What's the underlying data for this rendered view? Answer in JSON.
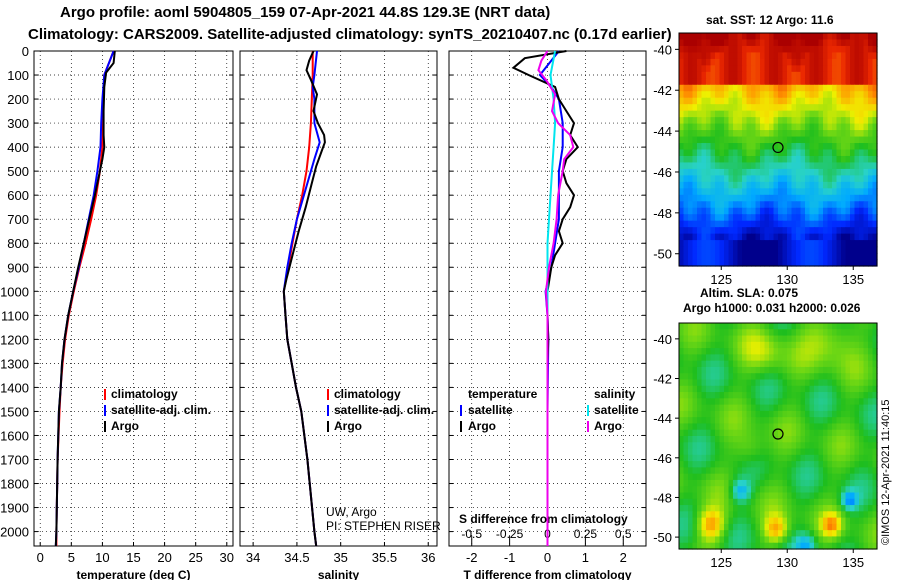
{
  "header": {
    "title_line1": "Argo profile: aoml 5904805_159 07-Apr-2021 44.8S 129.3E (NRT data)",
    "title_line2": "Climatology: CARS2009. Satellite-adjusted climatology: synTS_20210407.nc (0.17d earlier)"
  },
  "colors": {
    "climatology": "#ff0000",
    "satellite": "#0000ff",
    "argo": "#000000",
    "sat_salinity": "#00e5ee",
    "argo_salinity": "#ee00ee"
  },
  "depth_axis": {
    "ticks": [
      "0",
      "100",
      "200",
      "300",
      "400",
      "500",
      "600",
      "700",
      "800",
      "900",
      "1000",
      "1100",
      "1200",
      "1300",
      "1400",
      "1500",
      "1600",
      "1700",
      "1800",
      "1900",
      "2000"
    ],
    "range": [
      0,
      2060
    ]
  },
  "chart_data": [
    {
      "type": "line",
      "name": "temperature",
      "xlabel": "temperature (deg C)",
      "ylabel": "",
      "xlim": [
        -1,
        31
      ],
      "ylim": [
        2060,
        0
      ],
      "xticks": [
        "0",
        "5",
        "10",
        "15",
        "20",
        "25",
        "30"
      ],
      "legend": [
        "climatology",
        "satellite-adj. clim.",
        "Argo"
      ],
      "series": [
        {
          "name": "climatology",
          "color": "#ff0000",
          "depth": [
            0,
            100,
            200,
            300,
            400,
            500,
            600,
            700,
            800,
            900,
            1000,
            1100,
            1200,
            1300,
            1400,
            1500,
            1700,
            2000,
            2060
          ],
          "values": [
            11.8,
            10.3,
            10.2,
            10.1,
            10.0,
            9.6,
            9.0,
            8.2,
            7.3,
            6.3,
            5.4,
            4.6,
            4.0,
            3.6,
            3.3,
            3.1,
            2.8,
            2.6,
            2.6
          ]
        },
        {
          "name": "satellite-adj. clim.",
          "color": "#0000ff",
          "depth": [
            0,
            100,
            200,
            300,
            400,
            500,
            600,
            700,
            800,
            900,
            1000,
            1100,
            1200,
            1300,
            1400,
            1500,
            1700,
            2000,
            2060
          ],
          "values": [
            11.8,
            10.3,
            10.0,
            9.8,
            9.7,
            9.2,
            8.6,
            7.8,
            7.0,
            6.2,
            5.3,
            4.5,
            3.9,
            3.5,
            3.3,
            3.0,
            2.8,
            2.6,
            2.5
          ]
        },
        {
          "name": "Argo",
          "color": "#000000",
          "depth": [
            0,
            50,
            90,
            150,
            250,
            350,
            400,
            450,
            500,
            600,
            700,
            800,
            900,
            1000,
            1100,
            1200,
            1300,
            1400,
            1500,
            1700,
            2000,
            2060
          ],
          "values": [
            12.0,
            11.8,
            10.6,
            10.3,
            10.2,
            10.2,
            10.3,
            10.0,
            9.6,
            8.8,
            7.9,
            7.0,
            6.1,
            5.3,
            4.5,
            3.9,
            3.5,
            3.3,
            3.0,
            2.8,
            2.6,
            2.5
          ]
        }
      ]
    },
    {
      "type": "line",
      "name": "salinity",
      "xlabel": "salinity",
      "ylabel": "",
      "xlim": [
        33.85,
        36.1
      ],
      "ylim": [
        2060,
        0
      ],
      "xticks": [
        "34",
        "34.5",
        "35",
        "35.5",
        "36"
      ],
      "legend": [
        "climatology",
        "satellite-adj. clim.",
        "Argo"
      ],
      "annotations": [
        "UW, Argo",
        "PI: STEPHEN RISER"
      ],
      "series": [
        {
          "name": "climatology",
          "color": "#ff0000",
          "depth": [
            0,
            100,
            200,
            300,
            400,
            500,
            600,
            700,
            800,
            900,
            1000,
            1100,
            1200,
            1300,
            1400,
            1500,
            1700,
            2000,
            2060
          ],
          "values": [
            34.68,
            34.68,
            34.67,
            34.66,
            34.64,
            34.61,
            34.56,
            34.5,
            34.45,
            34.4,
            34.35,
            34.37,
            34.39,
            34.44,
            34.49,
            34.55,
            34.62,
            34.7,
            34.72
          ]
        },
        {
          "name": "satellite-adj. clim.",
          "color": "#0000ff",
          "depth": [
            0,
            100,
            150,
            200,
            300,
            380,
            450,
            500,
            600,
            700,
            800,
            900,
            1000,
            1100,
            1200,
            1300,
            1400,
            1500,
            1700,
            2000,
            2060
          ],
          "values": [
            34.73,
            34.7,
            34.68,
            34.7,
            34.7,
            34.76,
            34.7,
            34.66,
            34.58,
            34.5,
            34.44,
            34.39,
            34.35,
            34.37,
            34.39,
            34.44,
            34.49,
            34.55,
            34.62,
            34.7,
            34.72
          ]
        },
        {
          "name": "Argo",
          "color": "#000000",
          "depth": [
            0,
            40,
            80,
            120,
            180,
            250,
            300,
            350,
            380,
            420,
            480,
            550,
            650,
            750,
            850,
            950,
            1000,
            1100,
            1200,
            1300,
            1400,
            1500,
            1700,
            2000,
            2060
          ],
          "values": [
            34.69,
            34.64,
            34.61,
            34.66,
            34.73,
            34.69,
            34.74,
            34.81,
            34.82,
            34.78,
            34.72,
            34.67,
            34.6,
            34.52,
            34.45,
            34.38,
            34.35,
            34.37,
            34.39,
            34.44,
            34.49,
            34.55,
            34.62,
            34.7,
            34.72
          ]
        }
      ]
    },
    {
      "type": "line",
      "name": "differences",
      "xlabel": "T difference from climatology",
      "ylabel": "",
      "xlim": [
        -2.6,
        2.6
      ],
      "ylim": [
        2060,
        0
      ],
      "xticks": [
        "-2",
        "-1",
        "0",
        "1",
        "2"
      ],
      "secondary_xlabel": "S difference from climatology",
      "secondary_xlim": [
        -0.65,
        0.65
      ],
      "secondary_xticks": [
        "-0.5",
        "-0.25",
        "0",
        "0.25",
        "0.5"
      ],
      "legend_temperature_title": "temperature",
      "legend_salinity_title": "salinity",
      "legend_temperature": [
        "satellite",
        "Argo"
      ],
      "legend_salinity": [
        "satellite",
        "Argo"
      ],
      "series": [
        {
          "name": "T satellite",
          "color": "#0000ff",
          "axis": "T",
          "depth": [
            0,
            80,
            100,
            150,
            200,
            300,
            400,
            500,
            600,
            700,
            800,
            900,
            1000,
            1100,
            1200,
            1500,
            2000,
            2060
          ],
          "values": [
            0.3,
            -0.1,
            -0.2,
            0.1,
            0.3,
            0.4,
            0.4,
            0.3,
            0.3,
            0.3,
            0.2,
            0.1,
            -0.05,
            0.0,
            0.02,
            0.0,
            0.0,
            0.0
          ]
        },
        {
          "name": "T Argo",
          "color": "#000000",
          "axis": "T",
          "depth": [
            0,
            30,
            70,
            100,
            150,
            200,
            250,
            300,
            350,
            400,
            450,
            500,
            550,
            600,
            650,
            700,
            750,
            800,
            850,
            900,
            950,
            1000,
            1100,
            1200,
            1300,
            1500,
            2000,
            2060
          ],
          "values": [
            0.5,
            -0.6,
            -0.9,
            -0.5,
            0.2,
            0.3,
            0.5,
            0.7,
            0.6,
            0.8,
            0.5,
            0.4,
            0.5,
            0.7,
            0.6,
            0.4,
            0.3,
            0.4,
            0.2,
            0.1,
            0.05,
            0.0,
            0.0,
            0.02,
            0.0,
            0.0,
            0.0,
            0.0
          ]
        },
        {
          "name": "S satellite",
          "color": "#00e5ee",
          "axis": "S",
          "depth": [
            0,
            100,
            200,
            300,
            400,
            600,
            800,
            1000,
            1200,
            1500,
            2000,
            2060
          ],
          "values": [
            0.05,
            0.02,
            0.04,
            0.05,
            0.04,
            0.02,
            0.0,
            0.0,
            0.0,
            0.0,
            0.0,
            0.0
          ]
        },
        {
          "name": "S Argo",
          "color": "#ee00ee",
          "axis": "S",
          "depth": [
            0,
            40,
            80,
            120,
            180,
            250,
            300,
            350,
            400,
            450,
            500,
            600,
            700,
            800,
            900,
            1000,
            1100,
            1200,
            1500,
            2000,
            2060
          ],
          "values": [
            0.0,
            -0.04,
            -0.06,
            -0.01,
            0.05,
            0.03,
            0.07,
            0.15,
            0.17,
            0.11,
            0.1,
            0.07,
            0.06,
            0.04,
            0.01,
            -0.01,
            0.0,
            0.0,
            0.0,
            0.0,
            0.0
          ]
        }
      ]
    },
    {
      "type": "heatmap",
      "name": "sat SST map",
      "title": "sat. SST: 12 Argo: 11.6",
      "xticks": [
        "125",
        "130",
        "135"
      ],
      "yticks": [
        "-40",
        "-42",
        "-44",
        "-46",
        "-48",
        "-50"
      ],
      "xlim": [
        121.8,
        136.8
      ],
      "ylim": [
        -50.6,
        -39.2
      ],
      "marker_lon": 129.3,
      "marker_lat": -44.8
    },
    {
      "type": "heatmap",
      "name": "altimetry SLA map",
      "title": "Altim. SLA: 0.075",
      "subtitle": "Argo h1000: 0.031 h2000: 0.026",
      "xticks": [
        "125",
        "130",
        "135"
      ],
      "yticks": [
        "-40",
        "-42",
        "-44",
        "-46",
        "-48",
        "-50"
      ],
      "xlim": [
        121.8,
        136.8
      ],
      "ylim": [
        -50.6,
        -39.2
      ],
      "marker_lon": 129.3,
      "marker_lat": -44.8
    }
  ],
  "credit": "©IMOS 12-Apr-2021 11:40:15"
}
